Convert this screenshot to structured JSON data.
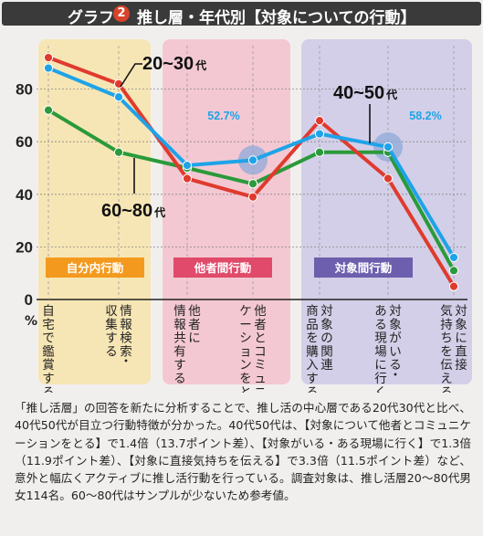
{
  "title": {
    "prefix": "グラフ",
    "number": "2",
    "text": "推し層・年代別【対象についての行動】"
  },
  "chart_data": {
    "type": "line",
    "ylim": [
      0,
      100
    ],
    "yticks": [
      0,
      20,
      40,
      60,
      80
    ],
    "y_unit": "%",
    "grid": true,
    "categories": [
      [
        "自宅で鑑賞する"
      ],
      [
        "情報検索・",
        "収集する"
      ],
      [
        "他者に",
        "情報共有する"
      ],
      [
        "他者とコミュニ",
        "ケーションをとる"
      ],
      [
        "対象の関連",
        "商品を購入する"
      ],
      [
        "対象がいる・",
        "ある現場に行く"
      ],
      [
        "対象に直接",
        "気持ちを伝える"
      ]
    ],
    "groups": [
      {
        "label": "自分内行動",
        "start": 0,
        "end": 1,
        "color": "#f7e6b5",
        "badge": "#f39a1e"
      },
      {
        "label": "他者間行動",
        "start": 2,
        "end": 3,
        "color": "#f3c8d2",
        "badge": "#e14a6a"
      },
      {
        "label": "対象間行動",
        "start": 4,
        "end": 6,
        "color": "#d3cfe8",
        "badge": "#6d5fae"
      }
    ],
    "series": [
      {
        "name": "20~30代",
        "color": "#e03a2e",
        "values": [
          92,
          82,
          46,
          39,
          68,
          46,
          5
        ]
      },
      {
        "name": "40~50代",
        "color": "#1ea3e8",
        "values": [
          88,
          77,
          51,
          53,
          63,
          58,
          16
        ]
      },
      {
        "name": "60~80代",
        "color": "#2a9a3a",
        "values": [
          72,
          56,
          50,
          44,
          56,
          56,
          11
        ]
      }
    ],
    "annotations": [
      {
        "text": "52.7%",
        "series": 1,
        "index": 3,
        "color": "#1ea3e8"
      },
      {
        "text": "58.2%",
        "series": 1,
        "index": 5,
        "color": "#1ea3e8"
      }
    ],
    "series_labels": [
      {
        "main": "20~30",
        "suffix": "代"
      },
      {
        "main": "40~50",
        "suffix": "代"
      },
      {
        "main": "60~80",
        "suffix": "代"
      }
    ]
  },
  "description": "「推し活層」の回答を新たに分析することで、推し活の中心層である20代30代と比べ、40代50代が目立つ行動特徴が分かった。40代50代は、【対象について他者とコミュニケーションをとる】で1.4倍（13.7ポイント差）、【対象がいる・ある現場に行く】で1.3倍（11.9ポイント差）、【対象に直接気持ちを伝える】で3.3倍（11.5ポイント差）など、意外と幅広くアクティブに推し活行動を行っている。調査対象は、推し活層20～80代男女114名。60～80代はサンプルが少ないため参考値。"
}
